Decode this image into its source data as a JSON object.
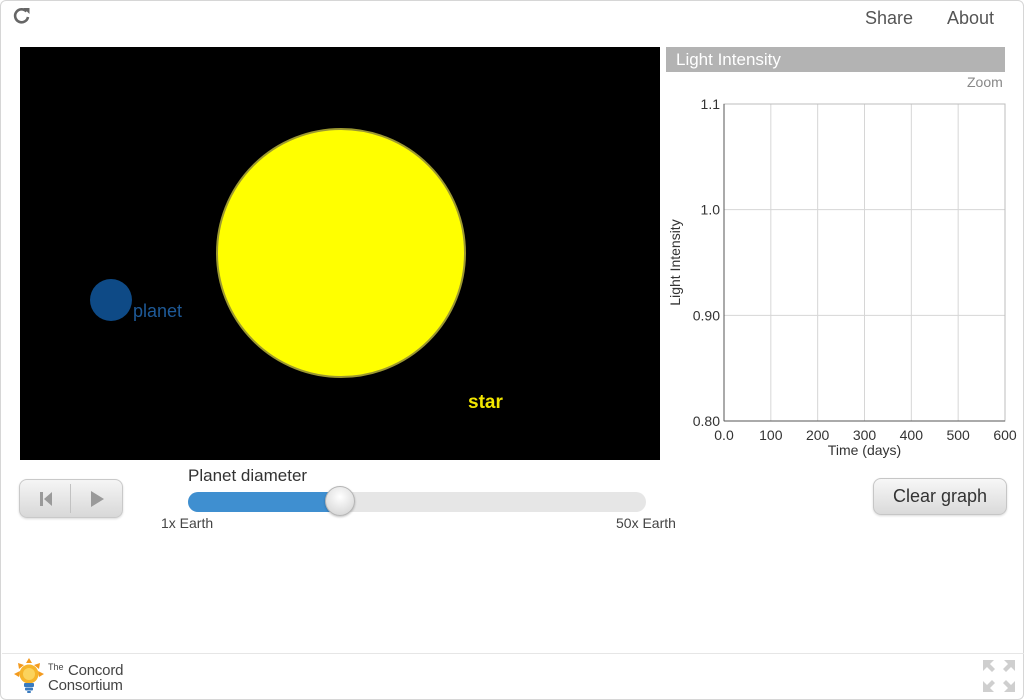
{
  "header": {
    "share_label": "Share",
    "about_label": "About"
  },
  "simulation": {
    "planet_label": "planet",
    "star_label": "star"
  },
  "graph": {
    "title": "Light Intensity",
    "zoom_label": "Zoom",
    "chart_data": {
      "type": "line",
      "xlabel": "Time (days)",
      "ylabel": "Light Intensity",
      "xlim": [
        0,
        600
      ],
      "ylim": [
        0.8,
        1.1
      ],
      "x_ticks": [
        0,
        100,
        200,
        300,
        400,
        500,
        600
      ],
      "x_tick_labels": [
        "0.0",
        "100",
        "200",
        "300",
        "400",
        "500",
        "600"
      ],
      "y_ticks": [
        0.8,
        0.9,
        1.0,
        1.1
      ],
      "y_tick_labels": [
        "0.80",
        "0.90",
        "1.0",
        "1.1"
      ],
      "grid": true,
      "series": []
    }
  },
  "controls": {
    "slider_title": "Planet diameter",
    "slider_min_label": "1x Earth",
    "slider_max_label": "50x Earth",
    "slider_value_fraction": 0.33,
    "clear_graph_label": "Clear graph"
  },
  "footer": {
    "logo_the": "The",
    "logo_concord": "Concord",
    "logo_consortium": "Consortium"
  },
  "colors": {
    "planet": "#0e4a86",
    "star": "#ffff00",
    "slider_fill": "#3f8fd0",
    "title_bar": "#b3b3b3"
  },
  "icons": [
    "reload-icon",
    "reset-icon",
    "play-icon",
    "lightbulb-logo-icon",
    "fullscreen-icon"
  ]
}
